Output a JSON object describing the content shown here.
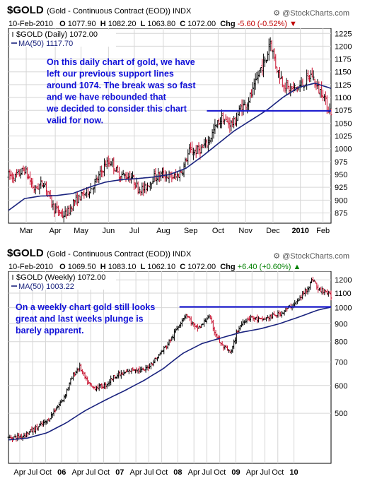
{
  "charts": [
    {
      "symbol": "$GOLD",
      "description": "(Gold - Continuous Contract (EOD)) INDX",
      "credit": "@StockCharts.com",
      "date": "10-Feb-2010",
      "ohlc": [
        {
          "k": "O",
          "v": "1077.90"
        },
        {
          "k": "H",
          "v": "1082.20"
        },
        {
          "k": "L",
          "v": "1063.80"
        },
        {
          "k": "C",
          "v": "1072.00"
        }
      ],
      "chg_label": "Chg",
      "chg": "-5.60 (-0.52%)",
      "chg_direction": "down",
      "legend_price": "$GOLD (Daily) 1072.00",
      "legend_ma": "MA(50) 1117.70",
      "annotation": [
        "On this daily chart of gold, we have",
        "left our previous support lines",
        "around 1074. The break was so fast",
        "and we have rebounded that",
        "we decided to consider this chart",
        "valid for now."
      ],
      "colors": {
        "up": "#000000",
        "down": "#c8102e",
        "ma": "#1a237e",
        "support": "#1c1ccf",
        "annotation": "#1010d8"
      }
    },
    {
      "symbol": "$GOLD",
      "description": "(Gold - Continuous Contract (EOD)) INDX",
      "credit": "@StockCharts.com",
      "date": "10-Feb-2010",
      "ohlc": [
        {
          "k": "O",
          "v": "1069.50"
        },
        {
          "k": "H",
          "v": "1083.10"
        },
        {
          "k": "L",
          "v": "1062.10"
        },
        {
          "k": "C",
          "v": "1072.00"
        }
      ],
      "chg_label": "Chg",
      "chg": "+6.40 (+0.60%)",
      "chg_direction": "up",
      "legend_price": "$GOLD (Weekly) 1072.00",
      "legend_ma": "MA(50) 1003.22",
      "annotation": [
        "On a weekly chart gold still looks",
        "great and last weeks plunge is",
        "barely apparent."
      ],
      "colors": {
        "up": "#000000",
        "down": "#c8102e",
        "ma": "#1a237e",
        "support": "#1c1ccf",
        "annotation": "#1010d8"
      }
    }
  ],
  "chart_data": [
    {
      "type": "bar",
      "style": "ohlc",
      "ticker": "$GOLD",
      "interval": "Daily",
      "ylim": [
        855,
        1235
      ],
      "yticks": [
        875,
        900,
        925,
        950,
        975,
        1000,
        1025,
        1050,
        1075,
        1100,
        1125,
        1150,
        1175,
        1200,
        1225
      ],
      "x_labels": [
        "Mar",
        "Apr",
        "May",
        "Jun",
        "Jul",
        "Aug",
        "Sep",
        "Oct",
        "Nov",
        "Dec",
        "2010",
        "Feb"
      ],
      "x_label_pos": [
        0.055,
        0.145,
        0.225,
        0.31,
        0.39,
        0.48,
        0.565,
        0.65,
        0.735,
        0.82,
        0.905,
        0.975
      ],
      "bold_labels": [
        "2010"
      ],
      "grid": true,
      "last_close": 1072.0,
      "ma50_last": 1117.7,
      "support_line": {
        "value": 1074,
        "x_from": 0.615,
        "x_to": 1.0
      },
      "anchors": [
        [
          0.0,
          948
        ],
        [
          0.02,
          945
        ],
        [
          0.05,
          960
        ],
        [
          0.08,
          920
        ],
        [
          0.11,
          935
        ],
        [
          0.14,
          885
        ],
        [
          0.17,
          870
        ],
        [
          0.19,
          880
        ],
        [
          0.2,
          895
        ],
        [
          0.23,
          910
        ],
        [
          0.26,
          925
        ],
        [
          0.28,
          945
        ],
        [
          0.3,
          970
        ],
        [
          0.32,
          975
        ],
        [
          0.34,
          950
        ],
        [
          0.38,
          945
        ],
        [
          0.4,
          925
        ],
        [
          0.42,
          920
        ],
        [
          0.45,
          945
        ],
        [
          0.48,
          950
        ],
        [
          0.5,
          945
        ],
        [
          0.52,
          945
        ],
        [
          0.54,
          960
        ],
        [
          0.56,
          995
        ],
        [
          0.58,
          995
        ],
        [
          0.6,
          1000
        ],
        [
          0.62,
          1015
        ],
        [
          0.64,
          1040
        ],
        [
          0.66,
          1060
        ],
        [
          0.68,
          1050
        ],
        [
          0.7,
          1050
        ],
        [
          0.72,
          1080
        ],
        [
          0.74,
          1090
        ],
        [
          0.76,
          1115
        ],
        [
          0.78,
          1155
        ],
        [
          0.8,
          1175
        ],
        [
          0.81,
          1215
        ],
        [
          0.83,
          1160
        ],
        [
          0.85,
          1130
        ],
        [
          0.87,
          1115
        ],
        [
          0.9,
          1120
        ],
        [
          0.92,
          1130
        ],
        [
          0.94,
          1145
        ],
        [
          0.96,
          1115
        ],
        [
          0.975,
          1110
        ],
        [
          0.985,
          1085
        ],
        [
          1.0,
          1072
        ]
      ],
      "ma50": [
        [
          0.0,
          880
        ],
        [
          0.05,
          903
        ],
        [
          0.1,
          908
        ],
        [
          0.15,
          909
        ],
        [
          0.2,
          913
        ],
        [
          0.25,
          925
        ],
        [
          0.3,
          935
        ],
        [
          0.35,
          940
        ],
        [
          0.4,
          942
        ],
        [
          0.45,
          945
        ],
        [
          0.5,
          950
        ],
        [
          0.55,
          962
        ],
        [
          0.6,
          985
        ],
        [
          0.65,
          1010
        ],
        [
          0.7,
          1035
        ],
        [
          0.75,
          1055
        ],
        [
          0.8,
          1075
        ],
        [
          0.85,
          1100
        ],
        [
          0.9,
          1120
        ],
        [
          0.95,
          1128
        ],
        [
          1.0,
          1117.7
        ]
      ]
    },
    {
      "type": "bar",
      "style": "ohlc",
      "ticker": "$GOLD",
      "interval": "Weekly",
      "scale": "log",
      "ylim": [
        360,
        1270
      ],
      "yticks": [
        500,
        600,
        700,
        800,
        900,
        1000,
        1100,
        1200
      ],
      "x_labels": [
        "Apr",
        "Jul",
        "Oct",
        "06",
        "Apr",
        "Jul",
        "Oct",
        "07",
        "Apr",
        "Jul",
        "Oct",
        "08",
        "Apr",
        "Jul",
        "Oct",
        "09",
        "Apr",
        "Jul",
        "Oct",
        "10"
      ],
      "x_label_pos": [
        0.035,
        0.075,
        0.115,
        0.165,
        0.215,
        0.255,
        0.295,
        0.345,
        0.395,
        0.435,
        0.475,
        0.525,
        0.575,
        0.615,
        0.655,
        0.705,
        0.755,
        0.795,
        0.835,
        0.885
      ],
      "bold_labels": [
        "06",
        "07",
        "08",
        "09",
        "10"
      ],
      "grid": true,
      "last_close": 1072.0,
      "ma50_last": 1003.22,
      "support_line": {
        "value": 1005,
        "x_from": 0.53,
        "x_to": 1.0
      },
      "anchors": [
        [
          0.0,
          425
        ],
        [
          0.04,
          430
        ],
        [
          0.08,
          450
        ],
        [
          0.12,
          475
        ],
        [
          0.15,
          520
        ],
        [
          0.17,
          550
        ],
        [
          0.2,
          640
        ],
        [
          0.22,
          680
        ],
        [
          0.24,
          620
        ],
        [
          0.26,
          590
        ],
        [
          0.3,
          600
        ],
        [
          0.33,
          640
        ],
        [
          0.36,
          650
        ],
        [
          0.39,
          670
        ],
        [
          0.42,
          660
        ],
        [
          0.44,
          690
        ],
        [
          0.46,
          720
        ],
        [
          0.49,
          780
        ],
        [
          0.51,
          830
        ],
        [
          0.53,
          900
        ],
        [
          0.55,
          960
        ],
        [
          0.58,
          870
        ],
        [
          0.6,
          890
        ],
        [
          0.62,
          950
        ],
        [
          0.64,
          850
        ],
        [
          0.66,
          780
        ],
        [
          0.69,
          740
        ],
        [
          0.71,
          860
        ],
        [
          0.73,
          920
        ],
        [
          0.75,
          940
        ],
        [
          0.78,
          920
        ],
        [
          0.81,
          940
        ],
        [
          0.84,
          960
        ],
        [
          0.87,
          1000
        ],
        [
          0.9,
          1050
        ],
        [
          0.93,
          1150
        ],
        [
          0.945,
          1210
        ],
        [
          0.96,
          1120
        ],
        [
          0.98,
          1120
        ],
        [
          1.0,
          1072
        ]
      ],
      "ma50": [
        [
          0.0,
          420
        ],
        [
          0.06,
          425
        ],
        [
          0.12,
          440
        ],
        [
          0.18,
          470
        ],
        [
          0.24,
          510
        ],
        [
          0.3,
          545
        ],
        [
          0.36,
          580
        ],
        [
          0.42,
          620
        ],
        [
          0.48,
          670
        ],
        [
          0.54,
          740
        ],
        [
          0.6,
          790
        ],
        [
          0.66,
          820
        ],
        [
          0.72,
          850
        ],
        [
          0.78,
          870
        ],
        [
          0.84,
          900
        ],
        [
          0.9,
          940
        ],
        [
          0.96,
          985
        ],
        [
          1.0,
          1003.22
        ]
      ]
    }
  ]
}
